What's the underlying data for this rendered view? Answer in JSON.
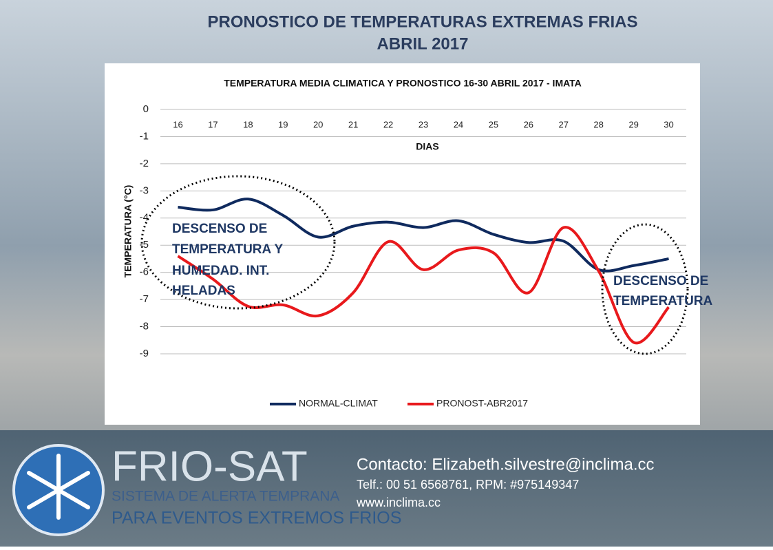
{
  "header": {
    "title_lines": [
      "PRONOSTICO DE TEMPERATURAS EXTREMAS FRIAS",
      "ABRIL 2017"
    ]
  },
  "chart_data": {
    "type": "line",
    "title": "TEMPERATURA MEDIA CLIMATICA Y PRONOSTICO 16-30 ABRIL 2017 -  IMATA",
    "x_label": "DIAS",
    "y_label": "TEMPERATURA (°C)",
    "categories": [
      "16",
      "17",
      "18",
      "19",
      "20",
      "21",
      "22",
      "23",
      "24",
      "25",
      "26",
      "27",
      "28",
      "29",
      "30"
    ],
    "series": [
      {
        "name": "NORMAL-CLIMAT",
        "color": "#0f2a5e",
        "values": [
          -3.6,
          -3.7,
          -3.3,
          -3.9,
          -4.7,
          -4.3,
          -4.15,
          -4.35,
          -4.1,
          -4.6,
          -4.9,
          -4.85,
          -5.9,
          -5.75,
          -5.5
        ]
      },
      {
        "name": "PRONOST-ABR2017",
        "color": "#e8191c",
        "values": [
          -5.4,
          -6.25,
          -7.25,
          -7.2,
          -7.6,
          -6.75,
          -4.87,
          -5.9,
          -5.18,
          -5.28,
          -6.75,
          -4.35,
          -5.95,
          -8.58,
          -7.28
        ]
      }
    ],
    "ylim": [
      -9,
      0
    ],
    "yticks": [
      0,
      -1,
      -2,
      -3,
      -4,
      -5,
      -6,
      -7,
      -8,
      -9
    ],
    "grid": true,
    "smooth": true,
    "legend": "bottom",
    "annotations": [
      {
        "lines": [
          "DESCENSO DE",
          "TEMPERATURA Y",
          "HUMEDAD. INT.",
          "HELADAS"
        ]
      },
      {
        "lines": [
          "DESCENSO DE",
          "TEMPERATURA"
        ]
      }
    ]
  },
  "footer": {
    "brand": "FRIO-SAT",
    "tagline_1": "SISTEMA DE ALERTA TEMPRANA",
    "tagline_2": "PARA EVENTOS EXTREMOS FRIOS",
    "contact": "Contacto: Elizabeth.silvestre@inclima.cc",
    "phone": "Telf.: 00 51 6568761, RPM: #975149347",
    "web": "www.inclima.cc"
  }
}
